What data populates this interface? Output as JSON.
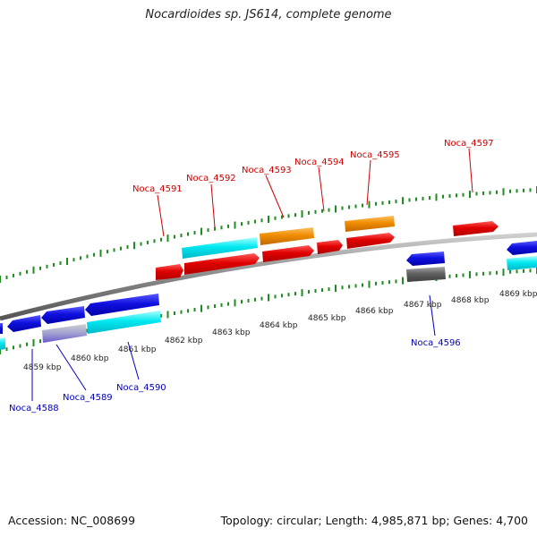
{
  "title": "Nocardioides sp. JS614, complete genome",
  "footer": {
    "accession": "Accession: NC_008699",
    "summary": "Topology: circular; Length: 4,985,871 bp; Genes: 4,700"
  },
  "axis": {
    "ticks": [
      "4859 kbp",
      "4860 kbp",
      "4861 kbp",
      "4862 kbp",
      "4863 kbp",
      "4864 kbp",
      "4865 kbp",
      "4866 kbp",
      "4867 kbp",
      "4868 kbp",
      "4869 kbp"
    ]
  },
  "genes": {
    "top": [
      {
        "name": "Noca_4591",
        "color": "#cc0000"
      },
      {
        "name": "Noca_4592",
        "color": "#cc0000"
      },
      {
        "name": "Noca_4593",
        "color": "#cc0000"
      },
      {
        "name": "Noca_4594",
        "color": "#cc0000"
      },
      {
        "name": "Noca_4595",
        "color": "#cc0000"
      },
      {
        "name": "Noca_4597",
        "color": "#cc0000"
      }
    ],
    "bottom": [
      {
        "name": "Noca_4588",
        "color": "#0000bb"
      },
      {
        "name": "Noca_4589",
        "color": "#0000bb"
      },
      {
        "name": "Noca_4590",
        "color": "#0000bb"
      },
      {
        "name": "Noca_4596",
        "color": "#0000bb"
      }
    ]
  },
  "colors": {
    "forward_cds": "#e8000b",
    "reverse_cds": "#1010e0",
    "rna": "#00e5f0",
    "orange": "#f08c00",
    "gray_feature": "#606060",
    "tick": "#1e8c1e",
    "backbone": "#888888"
  }
}
